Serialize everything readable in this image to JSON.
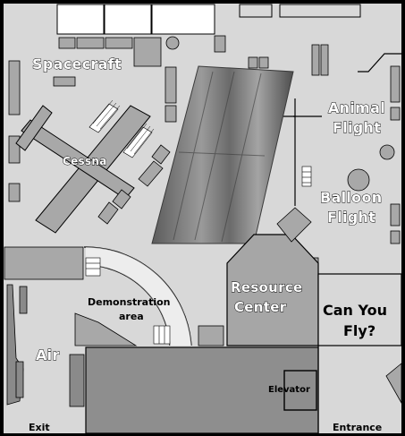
{
  "map": {
    "colors": {
      "outer_border": "#000000",
      "floor": "#d8d8d8",
      "wall_fill": "#ffffff",
      "fixture": "#a8a8a8",
      "fixture_dark": "#8a8a8a",
      "resource_center": "#a6a6a6",
      "elevator_hall": "#8e8e8e",
      "label_text": "#000000"
    },
    "labels": {
      "spacecraft": "Spacecraft",
      "cessna": "Cessna",
      "animal_flight_line1": "Animal",
      "animal_flight_line2": "Flight",
      "balloon_flight_line1": "Balloon",
      "balloon_flight_line2": "Flight",
      "resource_center_line1": "Resource",
      "resource_center_line2": "Center",
      "demonstration_line1": "Demonstration",
      "demonstration_line2": "area",
      "can_you_fly_line1": "Can You",
      "can_you_fly_line2": "Fly?",
      "air": "Air",
      "elevator": "Elevator",
      "exit": "Exit",
      "entrance": "Entrance"
    }
  }
}
